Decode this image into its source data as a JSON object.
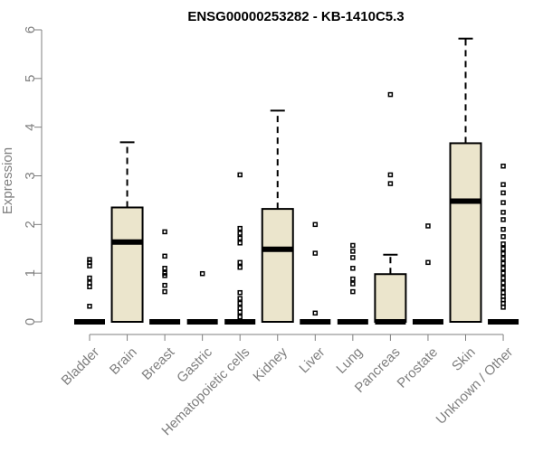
{
  "chart_data": {
    "type": "boxplot",
    "title": "ENSG00000253282 - KB-1410C5.3",
    "xlabel": "",
    "ylabel": "Expression",
    "ylim": [
      0,
      6
    ],
    "yticks": [
      "0",
      "1",
      "2",
      "3",
      "4",
      "5",
      "6"
    ],
    "categories": [
      "Bladder",
      "Brain",
      "Breast",
      "Gastric",
      "Hematopoietic cells",
      "Kidney",
      "Liver",
      "Lung",
      "Pancreas",
      "Prostate",
      "Skin",
      "Unknown / Other"
    ],
    "boxes": [
      {
        "name": "Bladder",
        "min": 0,
        "q1": 0,
        "median": 0,
        "q3": 0,
        "max": 0,
        "outliers": [
          0.32,
          0.72,
          0.8,
          0.9,
          1.15,
          1.22,
          1.28
        ]
      },
      {
        "name": "Brain",
        "min": 0,
        "q1": 0,
        "median": 1.64,
        "q3": 2.35,
        "max": 3.69,
        "outliers": []
      },
      {
        "name": "Breast",
        "min": 0,
        "q1": 0,
        "median": 0,
        "q3": 0,
        "max": 0,
        "outliers": [
          0.62,
          0.75,
          0.95,
          1.0,
          1.1,
          1.35,
          1.85
        ]
      },
      {
        "name": "Gastric",
        "min": 0,
        "q1": 0,
        "median": 0,
        "q3": 0,
        "max": 0,
        "outliers": [
          0.99
        ]
      },
      {
        "name": "Hematopoietic cells",
        "min": 0,
        "q1": 0,
        "median": 0,
        "q3": 0,
        "max": 0,
        "outliers": [
          0.1,
          0.2,
          0.28,
          0.38,
          0.48,
          0.6,
          1.12,
          1.22,
          1.62,
          1.72,
          1.82,
          1.92,
          3.02
        ]
      },
      {
        "name": "Kidney",
        "min": 0,
        "q1": 0,
        "median": 1.49,
        "q3": 2.32,
        "max": 4.34,
        "outliers": []
      },
      {
        "name": "Liver",
        "min": 0,
        "q1": 0,
        "median": 0,
        "q3": 0,
        "max": 0,
        "outliers": [
          0.18,
          1.41,
          2.0
        ]
      },
      {
        "name": "Lung",
        "min": 0,
        "q1": 0,
        "median": 0,
        "q3": 0,
        "max": 0,
        "outliers": [
          0.62,
          0.78,
          0.88,
          1.1,
          1.32,
          1.45,
          1.57
        ]
      },
      {
        "name": "Pancreas",
        "min": 0,
        "q1": 0,
        "median": 0,
        "q3": 0.98,
        "max": 1.38,
        "outliers": [
          2.84,
          3.02,
          4.67
        ]
      },
      {
        "name": "Prostate",
        "min": 0,
        "q1": 0,
        "median": 0,
        "q3": 0,
        "max": 0,
        "outliers": [
          1.22,
          1.97
        ]
      },
      {
        "name": "Skin",
        "min": 0,
        "q1": 0,
        "median": 2.48,
        "q3": 3.67,
        "max": 5.82,
        "outliers": []
      },
      {
        "name": "Unknown / Other",
        "min": 0,
        "q1": 0,
        "median": 0,
        "q3": 0,
        "max": 0,
        "outliers": [
          0.3,
          0.38,
          0.45,
          0.52,
          0.6,
          0.7,
          0.8,
          0.9,
          1.0,
          1.1,
          1.2,
          1.3,
          1.4,
          1.5,
          1.6,
          1.75,
          1.9,
          2.1,
          2.25,
          2.45,
          2.65,
          2.82,
          3.2
        ]
      }
    ],
    "colors": {
      "box_fill": "#ebe5cc",
      "stroke": "#000000",
      "axis": "#7f7f7f"
    }
  }
}
